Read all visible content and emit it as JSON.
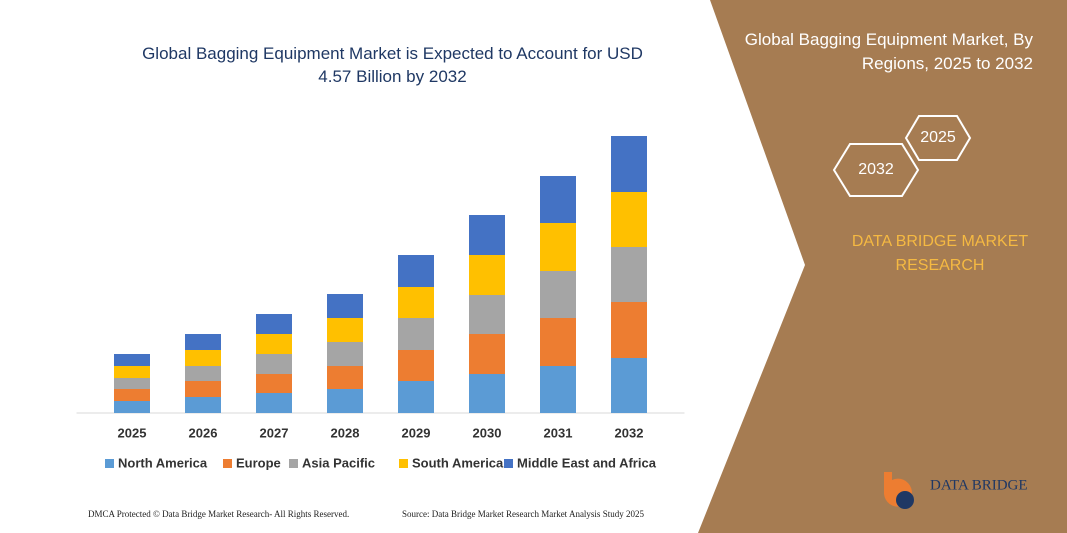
{
  "chart_data": {
    "type": "stacked-bar",
    "title": "Global Bagging Equipment Market is Expected to Account for USD 4.57 Billion by 2032",
    "categories": [
      "2025",
      "2026",
      "2027",
      "2028",
      "2029",
      "2030",
      "2031",
      "2032"
    ],
    "series": [
      {
        "name": "North America",
        "color": "#5b9bd5",
        "values": [
          12,
          16,
          20,
          24,
          32,
          39,
          47,
          55
        ]
      },
      {
        "name": "Europe",
        "color": "#ed7d31",
        "values": [
          12,
          16,
          19,
          23,
          31,
          40,
          48,
          56
        ]
      },
      {
        "name": "Asia Pacific",
        "color": "#a5a5a5",
        "values": [
          11,
          15,
          20,
          24,
          32,
          39,
          47,
          55
        ]
      },
      {
        "name": "South America",
        "color": "#ffc000",
        "values": [
          12,
          16,
          20,
          24,
          31,
          40,
          48,
          55
        ]
      },
      {
        "name": "Middle East and Africa",
        "color": "#4472c4",
        "values": [
          12,
          16,
          20,
          24,
          32,
          40,
          47,
          56
        ]
      }
    ],
    "ylim": [
      0,
      280
    ]
  },
  "panel": {
    "title": "Global Bagging Equipment Market, By Regions, 2025 to 2032",
    "hexagons": [
      "2025",
      "2032"
    ],
    "brand": "DATA BRIDGE MARKET RESEARCH",
    "logo": "DATA BRIDGE"
  },
  "footer": {
    "left": "DMCA Protected © Data Bridge Market Research- All Rights Reserved.",
    "right": "Source: Data Bridge Market Research Market Analysis Study 2025"
  }
}
